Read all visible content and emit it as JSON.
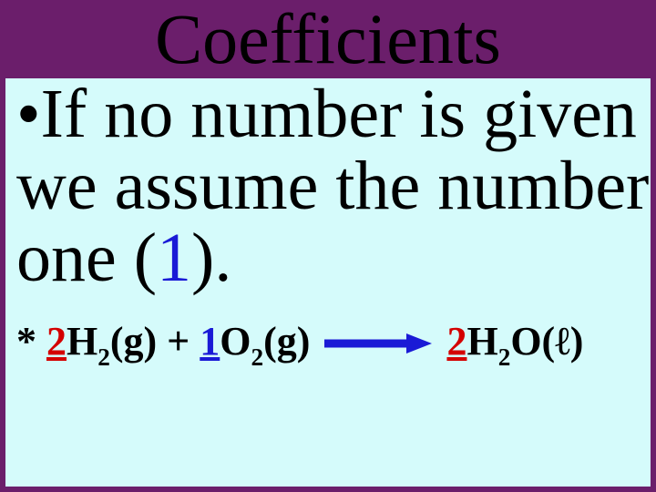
{
  "colors": {
    "slide_bg": "#6b1e6b",
    "content_bg": "#d5fbfb",
    "title_color": "#000000",
    "body_text": "#000000",
    "coef_red": "#d40000",
    "coef_blue": "#1a1ad6",
    "arrow_fill": "#1a1ad6"
  },
  "title": "Coefficients",
  "bullet": {
    "marker": "•",
    "pre": "If no number is given we assume the number one (",
    "one": "1",
    "post": ")."
  },
  "equation": {
    "star": "* ",
    "c1": "2",
    "t1a": "H",
    "t1sub": "2",
    "t1b": "(g) + ",
    "c2": "1",
    "t2a": "O",
    "t2sub": "2",
    "t2b": "(g)",
    "c3": "2",
    "t3a": "H",
    "t3sub1": "2",
    "t3b": "O(ℓ)"
  },
  "arrow": {
    "width": 120,
    "height": 26,
    "stroke_width": 9
  }
}
